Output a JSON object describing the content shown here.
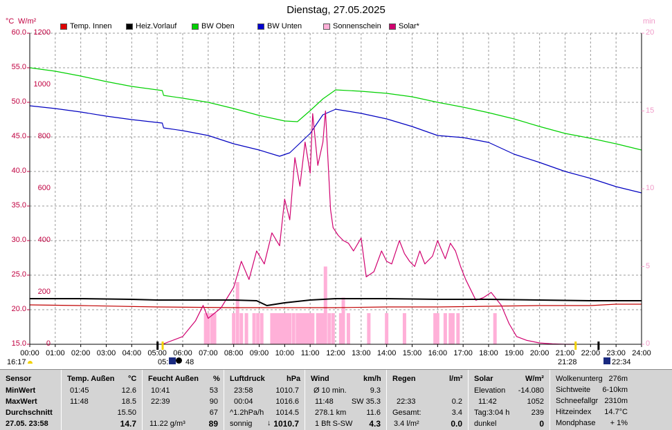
{
  "title": "Dienstag, 27.05.2025",
  "units": {
    "left_temp": "°C",
    "left_wm2": "W/m²",
    "right": "min"
  },
  "legend": [
    {
      "label": "Temp. Innen",
      "color": "#e00000"
    },
    {
      "label": "Heiz.Vorlauf",
      "color": "#000000"
    },
    {
      "label": "BW Oben",
      "color": "#00d000"
    },
    {
      "label": "BW Unten",
      "color": "#0000d0"
    },
    {
      "label": "Sonnenschein",
      "color": "#ffb0d8"
    },
    {
      "label": "Solar*",
      "color": "#d0006f"
    }
  ],
  "axis_labels": {
    "temp": [
      "60.0",
      "55.0",
      "50.0",
      "45.0",
      "40.0",
      "35.0",
      "30.0",
      "25.0",
      "20.0",
      "15.0"
    ],
    "wm2": [
      "1200",
      "1000",
      "800",
      "600",
      "400",
      "200",
      "0"
    ],
    "min": [
      "20",
      "15",
      "10",
      "5",
      "0"
    ],
    "x": [
      "00:00",
      "01:00",
      "02:00",
      "03:00",
      "04:00",
      "05:00",
      "06:00",
      "07:00",
      "08:00",
      "09:00",
      "10:00",
      "11:00",
      "12:00",
      "13:00",
      "14:00",
      "15:00",
      "16:00",
      "17:00",
      "18:00",
      "19:00",
      "20:00",
      "21:00",
      "22:00",
      "23:00",
      "24:00"
    ]
  },
  "sun_marks": {
    "left": "16:17",
    "rise": "05:",
    "rise2": "48",
    "set": "21:28",
    "right": "22:34"
  },
  "chart_data": {
    "type": "line",
    "title": "Dienstag, 27.05.2025",
    "x_unit": "hour",
    "xlim": [
      0,
      24
    ],
    "ylim_temp": [
      15,
      60
    ],
    "ylim_wm2": [
      0,
      1200
    ],
    "ylim_min": [
      0,
      20
    ],
    "series": [
      {
        "name": "Temp. Innen",
        "axis": "temp",
        "color": "#c00000",
        "x": [
          0,
          2,
          5,
          8,
          10,
          12,
          14,
          16,
          18,
          20,
          22,
          23,
          24
        ],
        "y": [
          20.7,
          20.6,
          20.4,
          20.3,
          20.3,
          20.3,
          20.4,
          20.4,
          20.5,
          20.6,
          20.6,
          20.8,
          20.8
        ]
      },
      {
        "name": "Heiz.Vorlauf",
        "axis": "temp",
        "color": "#000000",
        "x": [
          0,
          2,
          4,
          5,
          6,
          8,
          8.9,
          9.3,
          10,
          11,
          12,
          14,
          16,
          18,
          20,
          22,
          24
        ],
        "y": [
          21.6,
          21.6,
          21.5,
          21.4,
          21.4,
          21.4,
          21.3,
          20.6,
          21.0,
          21.4,
          21.6,
          21.6,
          21.5,
          21.5,
          21.4,
          21.3,
          21.3
        ]
      },
      {
        "name": "BW Oben",
        "axis": "temp",
        "color": "#00d000",
        "x": [
          0,
          1,
          2,
          3,
          4,
          5.2,
          5.25,
          6,
          7,
          8,
          9,
          10,
          10.5,
          11,
          11.5,
          12,
          13,
          14,
          15,
          16,
          17,
          18,
          19,
          20,
          21,
          22,
          23,
          24
        ],
        "y": [
          55.0,
          54.5,
          53.8,
          53.0,
          52.3,
          51.7,
          51.0,
          50.6,
          50.0,
          49.1,
          48.1,
          47.3,
          47.2,
          48.8,
          50.5,
          51.8,
          51.6,
          51.3,
          50.8,
          50.0,
          49.3,
          48.5,
          47.6,
          46.5,
          45.5,
          44.8,
          44.0,
          43.1
        ]
      },
      {
        "name": "BW Unten",
        "axis": "temp",
        "color": "#0000c0",
        "x": [
          0,
          1,
          2,
          3,
          4,
          5.2,
          5.25,
          6,
          7,
          8,
          9,
          9.8,
          10.2,
          11,
          11.5,
          12,
          13,
          14,
          15,
          16,
          17,
          18,
          19,
          20,
          21,
          22,
          23,
          24
        ],
        "y": [
          49.5,
          49.1,
          48.6,
          48.0,
          47.5,
          47.0,
          46.3,
          45.9,
          45.2,
          44.0,
          43.1,
          42.2,
          42.7,
          45.5,
          48.2,
          49.0,
          48.4,
          47.6,
          46.5,
          45.2,
          44.9,
          44.2,
          42.5,
          41.3,
          40.0,
          39.0,
          37.8,
          36.9
        ]
      },
      {
        "name": "Solar*",
        "axis": "wm2",
        "color": "#d0006f",
        "x": [
          5.2,
          6,
          6.5,
          6.8,
          7,
          7.5,
          8,
          8.3,
          8.6,
          8.9,
          9.2,
          9.5,
          9.8,
          10,
          10.2,
          10.4,
          10.6,
          10.8,
          11,
          11.1,
          11.3,
          11.5,
          11.6,
          11.8,
          11.9,
          12.1,
          12.3,
          12.5,
          12.7,
          13.0,
          13.2,
          13.5,
          13.8,
          14.0,
          14.2,
          14.5,
          14.7,
          14.9,
          15.1,
          15.3,
          15.5,
          15.8,
          16.0,
          16.3,
          16.5,
          16.7,
          16.9,
          17.1,
          17.5,
          17.8,
          18.1,
          18.5,
          18.8,
          19.1,
          19.5,
          20.0,
          20.5,
          21.0,
          21.4
        ],
        "y": [
          0,
          30,
          90,
          150,
          100,
          140,
          220,
          320,
          250,
          360,
          310,
          430,
          380,
          560,
          480,
          720,
          610,
          780,
          660,
          890,
          690,
          780,
          900,
          520,
          450,
          420,
          400,
          390,
          360,
          410,
          260,
          280,
          360,
          320,
          310,
          400,
          350,
          320,
          300,
          360,
          310,
          340,
          400,
          330,
          390,
          360,
          300,
          250,
          170,
          180,
          200,
          150,
          80,
          30,
          15,
          5,
          2,
          0,
          0
        ]
      },
      {
        "name": "Sonnenschein",
        "axis": "min",
        "color": "#ffb0d8",
        "style": "bars",
        "x": [
          6.9,
          7.0,
          7.15,
          7.25,
          8.0,
          8.15,
          8.3,
          8.5,
          8.8,
          8.95,
          9.1,
          9.5,
          9.6,
          9.7,
          9.8,
          9.9,
          10.0,
          10.1,
          10.2,
          10.35,
          10.5,
          10.6,
          10.7,
          10.8,
          10.9,
          11.0,
          11.1,
          11.3,
          11.4,
          11.5,
          11.6,
          11.75,
          11.9,
          12.2,
          12.3,
          12.5,
          13.3,
          14.0,
          14.7,
          15.9,
          16.0,
          16.3,
          16.5,
          16.6,
          16.8,
          18.25
        ],
        "y": [
          2,
          2,
          2,
          2,
          2,
          4,
          2,
          2,
          2,
          2,
          2,
          2,
          2,
          2,
          2,
          2,
          2,
          2,
          2,
          2,
          2,
          2,
          2,
          2,
          2,
          2,
          2,
          2,
          2,
          2,
          5,
          2,
          2,
          2,
          3,
          2,
          2,
          2,
          2,
          2,
          2,
          2,
          2,
          2,
          2,
          2
        ]
      }
    ]
  },
  "stats": {
    "sensor": {
      "head": "Sensor",
      "rows": [
        "MinWert",
        "MaxWert",
        "Durchschnitt",
        "27.05. 23:58"
      ]
    },
    "temp": {
      "head": "Temp. Außen",
      "unit": "°C",
      "times": [
        "01:45",
        "11:48",
        "",
        ""
      ],
      "values": [
        "12.6",
        "18.5",
        "15.50",
        "14.7"
      ]
    },
    "feucht": {
      "head": "Feucht Außen",
      "unit": "%",
      "times": [
        "10:41",
        "22:39",
        "",
        "11.22 g/m³"
      ],
      "values": [
        "53",
        "90",
        "67",
        "89"
      ]
    },
    "luft": {
      "head": "Luftdruck",
      "unit": "hPa",
      "times": [
        "23:58",
        "00:04",
        "^1.2hPa/h",
        "sonnig"
      ],
      "values": [
        "1010.7",
        "1016.6",
        "1014.5",
        "1010.7"
      ],
      "arrow": "↓"
    },
    "wind": {
      "head": "Wind",
      "unit": "km/h",
      "times": [
        "Ø 10 min.",
        "11:48",
        "278.1 km",
        "1 Bft S-SW"
      ],
      "mid": [
        "",
        "SW 35.3",
        "",
        ""
      ],
      "values": [
        "9.3",
        "",
        "11.6",
        "4.3"
      ]
    },
    "regen": {
      "head": "Regen",
      "unit": "l/m²",
      "times": [
        "",
        "22:33",
        "Gesamt:",
        "3.4 l/m²"
      ],
      "values": [
        "",
        "0.2",
        "3.4",
        "0.0"
      ]
    },
    "solar": {
      "head": "Solar",
      "unit": "W/m²",
      "times": [
        "Elevation",
        "11:42",
        "Tag:3:04 h",
        "dunkel"
      ],
      "values": [
        "-14.080",
        "1052",
        "239",
        "0"
      ]
    },
    "misc": {
      "labels": [
        "Wolkenunterg",
        "Sichtweite",
        "Schneefallgr",
        "Hitzeindex",
        "Mondphase"
      ],
      "values": [
        "276m",
        "6-10km",
        "2310m",
        "14.7°C",
        "+ 1%"
      ]
    }
  }
}
